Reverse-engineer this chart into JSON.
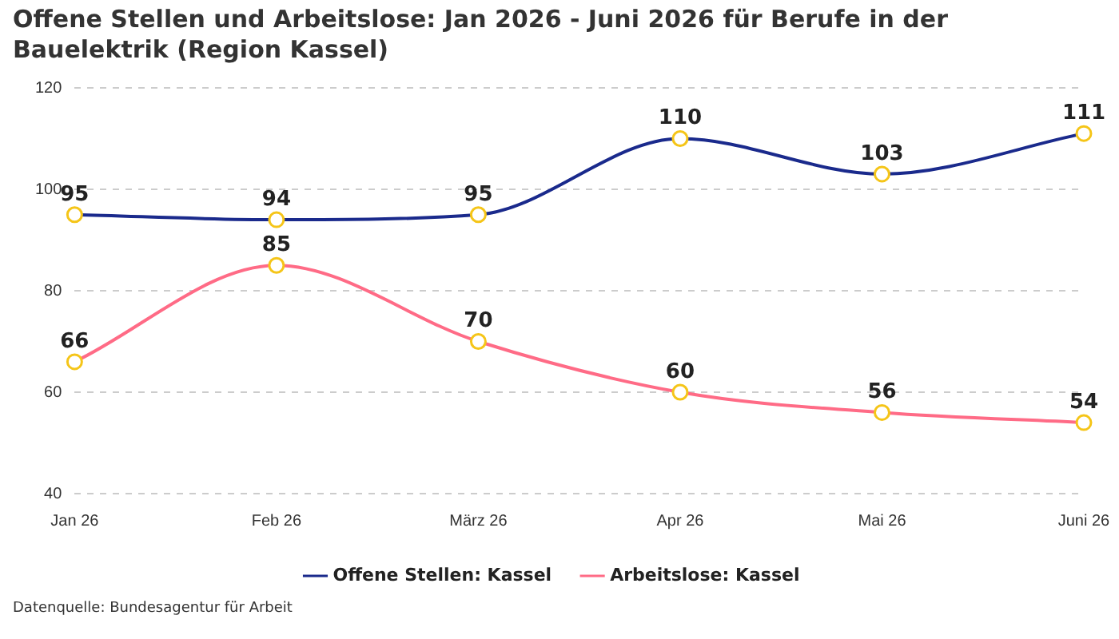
{
  "chart_data": {
    "type": "line",
    "title": "Offene Stellen und Arbeitslose: Jan 2026 - Juni 2026 für Berufe in der Bauelektrik (Region Kassel)",
    "categories": [
      "Jan 26",
      "Feb 26",
      "März 26",
      "Apr 26",
      "Mai 26",
      "Juni 26"
    ],
    "series": [
      {
        "name": "Offene Stellen: Kassel",
        "color": "#1a2a8c",
        "values": [
          95,
          94,
          95,
          110,
          103,
          111
        ]
      },
      {
        "name": "Arbeitslose: Kassel",
        "color": "#ff6b86",
        "values": [
          66,
          85,
          70,
          60,
          56,
          54
        ]
      }
    ],
    "ylim": [
      40,
      120
    ],
    "yticks": [
      40,
      60,
      80,
      100,
      120
    ],
    "grid": "y",
    "legend": "bottom",
    "marker": "circle",
    "line_style": "solid",
    "data_labels": true,
    "annotations": [
      "Datenquelle: Bundesagentur für Arbeit"
    ]
  }
}
